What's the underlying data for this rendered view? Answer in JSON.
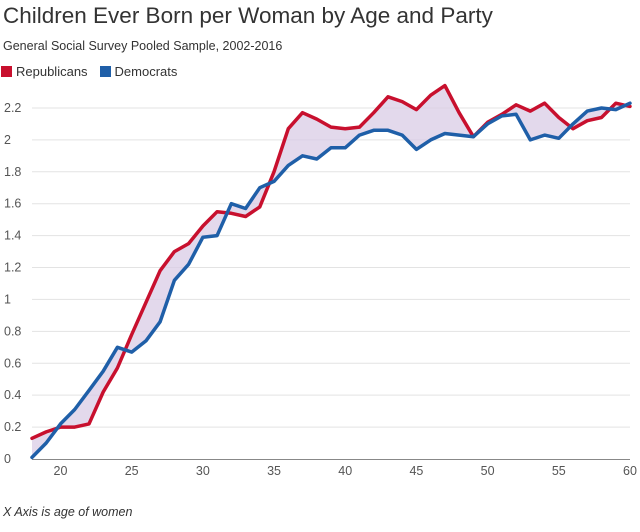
{
  "chart_data": {
    "type": "line",
    "title": "Children Ever Born per Woman by Age and Party",
    "subtitle": "General Social Survey Pooled Sample, 2002-2016",
    "note": "X Axis is age of women",
    "xlabel": "",
    "ylabel": "",
    "xlim": [
      18,
      60
    ],
    "ylim": [
      0,
      2.3
    ],
    "xticks": [
      "20",
      "25",
      "30",
      "35",
      "40",
      "45",
      "50",
      "55",
      "60"
    ],
    "yticks": [
      "0",
      "0.2",
      "0.4",
      "0.6",
      "0.8",
      "1",
      "1.2",
      "1.4",
      "1.6",
      "1.8",
      "2",
      "2.2"
    ],
    "grid": "horizontal",
    "legend": "top-left",
    "fill_between": true,
    "fill_color": "#d9cce6",
    "x": [
      18,
      19,
      20,
      21,
      22,
      23,
      24,
      25,
      26,
      27,
      28,
      29,
      30,
      31,
      32,
      33,
      34,
      35,
      36,
      37,
      38,
      39,
      40,
      41,
      42,
      43,
      44,
      45,
      46,
      47,
      48,
      49,
      50,
      51,
      52,
      53,
      54,
      55,
      56,
      57,
      58,
      59,
      60
    ],
    "series": [
      {
        "name": "Republicans",
        "color": "#c8102e",
        "values": [
          0.13,
          0.17,
          0.2,
          0.2,
          0.22,
          0.42,
          0.57,
          0.78,
          0.98,
          1.18,
          1.3,
          1.35,
          1.46,
          1.55,
          1.54,
          1.52,
          1.58,
          1.8,
          2.07,
          2.17,
          2.13,
          2.08,
          2.07,
          2.08,
          2.17,
          2.27,
          2.24,
          2.19,
          2.28,
          2.34,
          2.17,
          2.02,
          2.11,
          2.16,
          2.22,
          2.18,
          2.23,
          2.14,
          2.07,
          2.12,
          2.14,
          2.23,
          2.21
        ]
      },
      {
        "name": "Democrats",
        "color": "#1f5fa8",
        "values": [
          0.01,
          0.1,
          0.22,
          0.31,
          0.43,
          0.55,
          0.7,
          0.67,
          0.74,
          0.86,
          1.12,
          1.22,
          1.39,
          1.4,
          1.6,
          1.57,
          1.7,
          1.74,
          1.84,
          1.9,
          1.88,
          1.95,
          1.95,
          2.03,
          2.06,
          2.06,
          2.03,
          1.94,
          2.0,
          2.04,
          2.03,
          2.02,
          2.1,
          2.15,
          2.16,
          2.0,
          2.03,
          2.01,
          2.1,
          2.18,
          2.2,
          2.19,
          2.23
        ]
      }
    ]
  }
}
